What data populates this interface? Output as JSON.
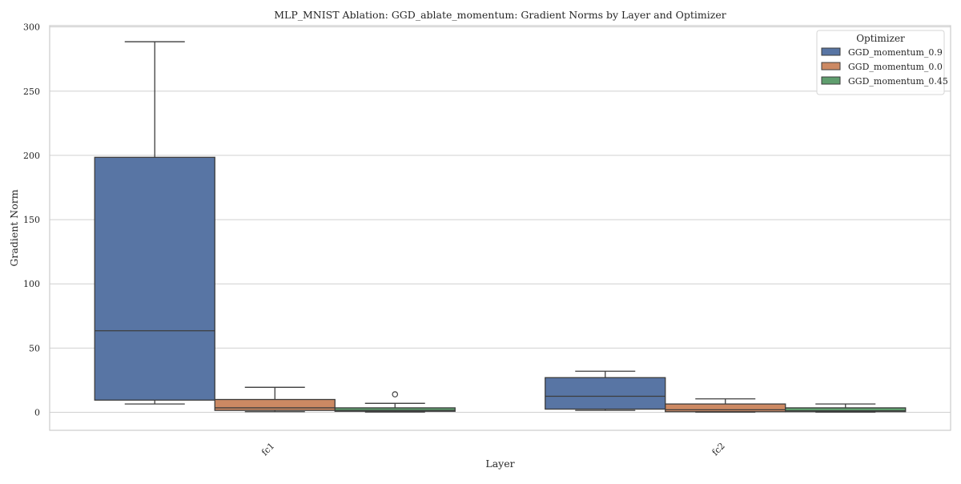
{
  "chart_data": {
    "type": "box",
    "title": "MLP_MNIST Ablation: GGD_ablate_momentum: Gradient Norms by Layer and Optimizer",
    "xlabel": "Layer",
    "ylabel": "Gradient Norm",
    "ylim": [
      -14,
      301
    ],
    "yticks": [
      0,
      50,
      100,
      150,
      200,
      250,
      300
    ],
    "grid": "horizontal",
    "categories": [
      "fc1",
      "fc2"
    ],
    "legend": {
      "title": "Optimizer",
      "placement": "top-right"
    },
    "series": [
      {
        "name": "GGD_momentum_0.9",
        "color": "#5875a4",
        "boxes": [
          {
            "whisker_low": 6.5,
            "q1": 9.5,
            "median": 63.5,
            "q3": 198.5,
            "whisker_high": 288.5,
            "outliers": []
          },
          {
            "whisker_low": 1.5,
            "q1": 2.5,
            "median": 12.5,
            "q3": 27,
            "whisker_high": 32,
            "outliers": []
          }
        ]
      },
      {
        "name": "GGD_momentum_0.0",
        "color": "#cc8963",
        "boxes": [
          {
            "whisker_low": 0.5,
            "q1": 1.5,
            "median": 3.5,
            "q3": 10,
            "whisker_high": 19.5,
            "outliers": []
          },
          {
            "whisker_low": 0.1,
            "q1": 0.5,
            "median": 2,
            "q3": 6.5,
            "whisker_high": 10.5,
            "outliers": []
          }
        ]
      },
      {
        "name": "GGD_momentum_0.45",
        "color": "#5f9e6e",
        "boxes": [
          {
            "whisker_low": 0.2,
            "q1": 0.8,
            "median": 1.5,
            "q3": 3.5,
            "whisker_high": 7,
            "outliers": [
              14
            ]
          },
          {
            "whisker_low": 0.1,
            "q1": 0.5,
            "median": 1.2,
            "q3": 3.5,
            "whisker_high": 6.5,
            "outliers": []
          }
        ]
      }
    ]
  }
}
